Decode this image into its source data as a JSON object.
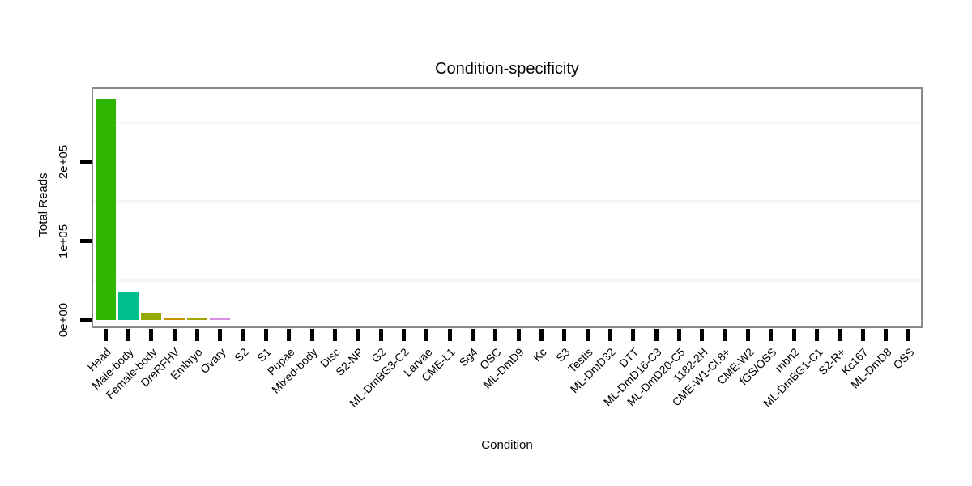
{
  "chart_data": {
    "type": "bar",
    "title": "Condition-specificity",
    "xlabel": "Condition",
    "ylabel": "Total Reads",
    "legend": "none",
    "grid": "minor-horizontal-only",
    "ylim": [
      0,
      295000
    ],
    "y_ticks": [
      {
        "value": 0,
        "label": "0e+00"
      },
      {
        "value": 100000,
        "label": "1e+05"
      },
      {
        "value": 200000,
        "label": "2e+05"
      }
    ],
    "y_minor_gridlines": [
      50000,
      150000,
      250000
    ],
    "categories": [
      "Head",
      "Male-body",
      "Female-body",
      "DreRFHV",
      "Embryo",
      "Ovary",
      "S2",
      "S1",
      "Pupae",
      "Mixed-body",
      "Disc",
      "S2-NP",
      "G2",
      "ML-DmBG3-C2",
      "Larvae",
      "CME-L1",
      "Sg4",
      "OSC",
      "ML-DmD9",
      "Kc",
      "S3",
      "Testis",
      "ML-DmD32",
      "DTT",
      "ML-DmD16-C3",
      "ML-DmD20-C5",
      "1182-2H",
      "CME-W1-Cl.8+",
      "CME-W2",
      "fGS/OSS",
      "mbn2",
      "ML-DmBG1-C1",
      "S2-R+",
      "Kc167",
      "ML-DmD8",
      "OSS"
    ],
    "values": [
      280000,
      35000,
      8500,
      3500,
      2500,
      1800,
      0,
      0,
      0,
      0,
      0,
      0,
      0,
      0,
      0,
      0,
      0,
      0,
      0,
      0,
      0,
      0,
      0,
      0,
      0,
      0,
      0,
      0,
      0,
      0,
      0,
      0,
      0,
      0,
      0,
      0
    ],
    "bar_colors": [
      "#2fb600",
      "#00bf8f",
      "#96a900",
      "#c89100",
      "#a3a500",
      "#d98ce3",
      null,
      null,
      null,
      null,
      null,
      null,
      null,
      null,
      null,
      null,
      null,
      null,
      null,
      null,
      null,
      null,
      null,
      null,
      null,
      null,
      null,
      null,
      null,
      null,
      null,
      null,
      null,
      null,
      null,
      null
    ],
    "colors": {
      "panel_border": "#898989",
      "minor_gridline": "#f6f6f6",
      "tick": "#000000",
      "text": "#000000",
      "background": "#ffffff"
    }
  }
}
